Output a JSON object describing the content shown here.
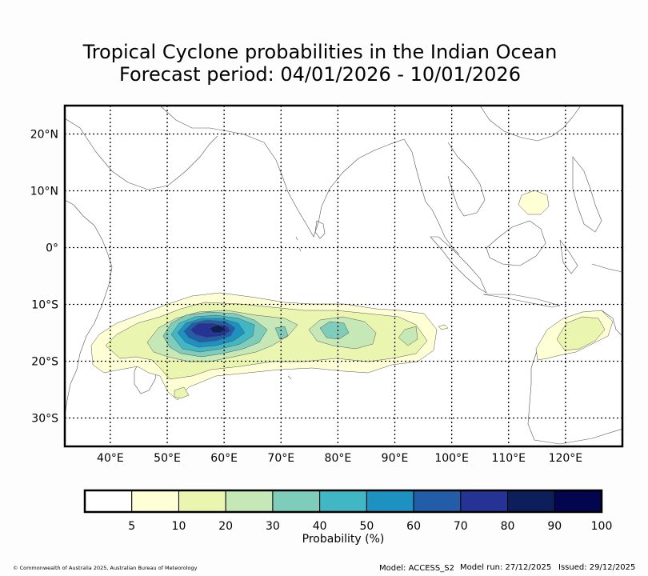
{
  "title_line1": "Tropical Cyclone probabilities in the Indian Ocean",
  "title_line2": "Forecast period: 04/01/2026 - 10/01/2026",
  "map": {
    "lon_range": [
      32,
      130
    ],
    "lat_range": [
      -35,
      25
    ],
    "lon_ticks": [
      {
        "value": 40,
        "label": "40°E"
      },
      {
        "value": 50,
        "label": "50°E"
      },
      {
        "value": 60,
        "label": "60°E"
      },
      {
        "value": 70,
        "label": "70°E"
      },
      {
        "value": 80,
        "label": "80°E"
      },
      {
        "value": 90,
        "label": "90°E"
      },
      {
        "value": 100,
        "label": "100°E"
      },
      {
        "value": 110,
        "label": "110°E"
      },
      {
        "value": 120,
        "label": "120°E"
      }
    ],
    "lat_ticks": [
      {
        "value": 20,
        "label": "20°N"
      },
      {
        "value": 10,
        "label": "10°N"
      },
      {
        "value": 0,
        "label": "0°"
      },
      {
        "value": -10,
        "label": "10°S"
      },
      {
        "value": -20,
        "label": "20°S"
      },
      {
        "value": -30,
        "label": "30°S"
      }
    ]
  },
  "colorbar": {
    "label": "Probability (%)",
    "ticks": [
      "5",
      "10",
      "20",
      "30",
      "40",
      "50",
      "60",
      "70",
      "80",
      "90",
      "100"
    ],
    "colors": [
      "#ffffff",
      "#ffffd5",
      "#eaf6b0",
      "#c6e8b6",
      "#7ecdbb",
      "#41b6c4",
      "#1d91c0",
      "#225ea8",
      "#253494",
      "#0c1f5a",
      "#03064f"
    ]
  },
  "footer": {
    "copyright": "© Commonwealth of Australia 2025, Australian Bureau of Meteorology",
    "model": "Model: ACCESS_S2",
    "run": "Model run: 27/12/2025",
    "issued": "Issued: 29/12/2025"
  }
}
